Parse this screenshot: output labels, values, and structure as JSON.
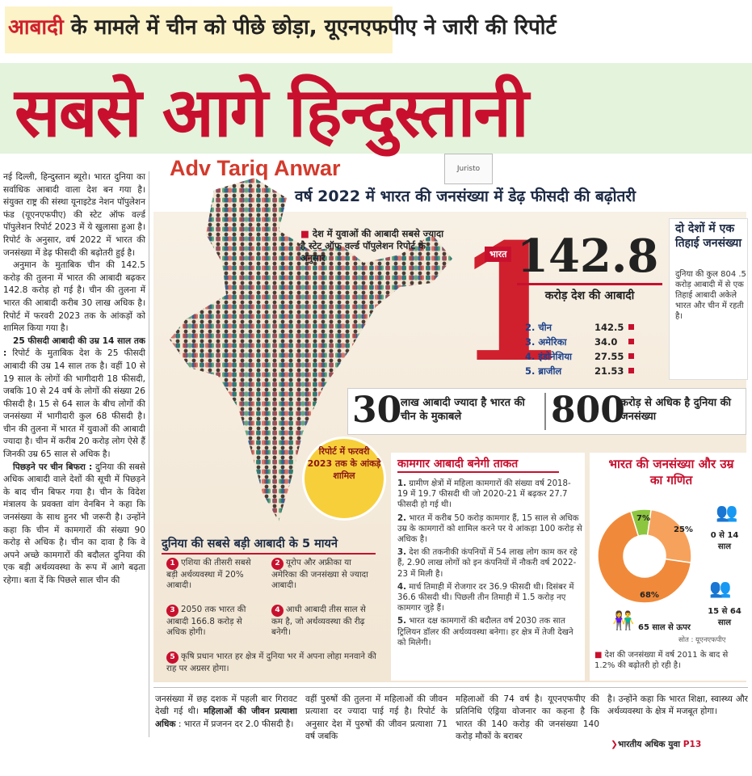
{
  "kicker": {
    "highlight": "आबादी",
    "rest": " के मामले में चीन को पीछे छोड़ा, यूएनएफपीए ने जारी की रिपोर्ट"
  },
  "headline": "सबसे आगे हिन्दुस्तानी",
  "watermark": {
    "text": "Adv Tariq Anwar",
    "logo": "Juristo"
  },
  "left_column": {
    "p1": "नई दिल्ली, हिन्दुस्तान ब्यूरो। भारत दुनिया का सर्वाधिक आबादी वाला देश बन गया है। संयुक्त राष्ट्र की संस्था यूनाइटेड नेशन पॉपुलेशन फंड (यूएनएफपीए) की स्टेट ऑफ वर्ल्ड पॉपुलेशन रिपोर्ट 2023 में ये खुलासा हुआ है। रिपोर्ट के अनुसार, वर्ष 2022 में भारत की जनसंख्या में डेढ़ फीसदी की बढ़ोतरी हुई है।",
    "p2": "अनुमान के मुताबिक चीन की 142.5 करोड़ की तुलना में भारत की आबादी बढ़कर 142.8 करोड़ हो गई है। चीन की तुलना में भारत की आबादी करीब 30 लाख अधिक है। रिपोर्ट में फरवरी 2023 तक के आंकड़ों को शामिल किया गया है।",
    "p3_head": "25 फीसदी आबादी की उम्र 14 साल तक :",
    "p3": " रिपोर्ट के मुताबिक देश के 25 फीसदी आबादी की उम्र 14 साल तक है। वहीं 10 से 19 साल के लोगों की भागीदारी 18 फीसदी, जबकि 10 से 24 वर्ष के लोगों की संख्या 26 फीसदी है। 15 से 64 साल के बीच लोगों की जनसंख्या में भागीदारी कुल 68 फीसदी है। चीन की तुलना में भारत में युवाओं की आबादी ज्यादा है। चीन में करीब 20 करोड़ लोग ऐसे हैं जिनकी उम्र 65 साल से अधिक है।",
    "p4_head": "पिछड़ने पर चीन बिफरा :",
    "p4": " दुनिया की सबसे अधिक आबादी वाले देशों की सूची में पिछड़ने के बाद चीन बिफर गया है। चीन के विदेश मंत्रालय के प्रवक्ता वांग वेनबिन ने कहा कि जनसंख्या के साथ हुनर भी जरूरी है। उन्होंने कहा कि चीन में कामगारों की संख्या 90 करोड़ से अधिक है। चीन का दावा है कि वे अपने अच्छे कामगारों की बदौलत दुनिया की एक बड़ी अर्थव्यवस्था के रूप में आगे बढ़ता रहेगा। बता दें कि पिछले साल चीन की"
  },
  "subhead": "वर्ष 2022 में भारत की जनसंख्या में डेढ़ फीसदी की बढ़ोतरी",
  "map_note": "देश में युवाओं की आबादी सबसे ज्यादा है स्टेट ऑफ वर्ल्ड पॉपुलेशन रिपोर्ट के अनुसार",
  "rank_one": {
    "digit": "1",
    "country_tag": "भारत",
    "value": "142.8",
    "label": "करोड़ देश की आबादी",
    "others": [
      {
        "name": "2. चीन",
        "value": "142.5"
      },
      {
        "name": "3. अमेरिका",
        "value": "34.0"
      },
      {
        "name": "4. इंडोनेशिया",
        "value": "27.55"
      },
      {
        "name": "5. ब्राजील",
        "value": "21.53"
      }
    ]
  },
  "thirds": {
    "title": "दो देशों में एक तिहाई जनसंख्या",
    "body": "दुनिया की कुल 804 .5 करोड़ आबादी में से एक तिहाई आबादी अकेले भारत और चीन में रहती है।"
  },
  "stats": {
    "n1": "30",
    "t1": "लाख आबादी ज्यादा है भारत की चीन के मुकाबले",
    "n2": "800",
    "t2": "करोड़ से अधिक है दुनिया की जनसंख्या"
  },
  "badge": "रिपोर्ट में फरवरी 2023 तक के आंकड़े शामिल",
  "five": {
    "title": "दुनिया की सबसे बड़ी आबादी के 5 मायने",
    "points": [
      {
        "n": "1",
        "text": "एशिया की तीसरी सबसे बड़ी अर्थव्यवस्था में 20% आबादी।"
      },
      {
        "n": "2",
        "text": "यूरोप और अफ्रीका या अमेरिका की जनसंख्या से ज्यादा आबादी।"
      },
      {
        "n": "3",
        "text": "2050 तक भारत की आबादी 166.8 करोड़ से अधिक होगी।"
      },
      {
        "n": "4",
        "text": "आधी आबादी तीस साल से कम है, जो अर्थव्यवस्था की रीढ़ बनेगी।"
      },
      {
        "n": "5",
        "text": "कृषि प्रधान भारत हर क्षेत्र में दुनिया भर में अपना लोहा मनवाने की राह पर अग्रसर होगा।"
      }
    ]
  },
  "workers": {
    "title": "कामगार आबादी बनेगी ताकत",
    "items": [
      {
        "n": "1.",
        "text": "ग्रामीण क्षेत्रों में महिला कामगारों की संख्या वर्ष 2018- 19 में 19.7 फीसदी थी जो 2020-21 में बढ़कर 27.7 फीसदी हो गई थी।"
      },
      {
        "n": "2.",
        "text": "भारत में करीब 50 करोड़ कामगार हैं, 15 साल से अधिक उम्र के कामगारों को शामिल करने पर ये आंकड़ा 100 करोड़ से अधिक है।"
      },
      {
        "n": "3.",
        "text": "देश की तकनीकी कंपनियों में 54 लाख लोग काम कर रहे हैं, 2.90 लाख लोगों को इन कंपनियों में नौकरी वर्ष 2022-23 में मिली है।"
      },
      {
        "n": "4.",
        "text": "मार्च तिमाही में रोजगार दर 36.9 फीसदी थी। दिसंबर में 36.6 फीसदी थी। पिछली तीन तिमाही में 1.5 करोड़ नए कामगार जुड़े हैं।"
      },
      {
        "n": "5.",
        "text": "भारत दक्ष कामगारों की बदौलत वर्ष 2030 तक सात ट्रिलियन डॉलर की अर्थव्यवस्था बनेगा। हर क्षेत्र में तेजी देखने को मिलेगी।"
      }
    ]
  },
  "age": {
    "title": "भारत की जनसंख्या और उम्र का गणित",
    "segments": [
      {
        "label": "0 से 14 साल",
        "pct_text": "25%",
        "value": 25,
        "color": "#f7a25c"
      },
      {
        "label": "15 से 64 साल",
        "pct_text": "68%",
        "value": 68,
        "color": "#f08a3a"
      },
      {
        "label": "65 साल से ऊपर",
        "pct_text": "7%",
        "value": 7,
        "color": "#8cc63f"
      }
    ],
    "source": "सोत : यूएनएफपीए",
    "note": "देश की जनसंख्या में वर्ष 2011 के बाद से 1.2% की बढ़ोतरी हो रही है।"
  },
  "bottom": {
    "c1": "जनसंख्या में छह दशक में पहली बार गिरावट देखी गई थी।",
    "c1_head": "महिलाओं की जीवन प्रत्याशा अधिक",
    "c1_tail": " : भारत में प्रजनन दर 2.0 फीसदी है।",
    "c2": "वहीं पुरुषों की तुलना में महिलाओं की जीवन प्रत्याशा दर ज्यादा पाई गई है। रिपोर्ट के अनुसार देश में पुरुषों की जीवन प्रत्याशा 71 वर्ष जबकि",
    "c3": "महिलाओं की 74 वर्ष है। यूएनएफपीए की प्रतिनिधि एंड्रिया वोजनार का कहना है कि भारत की 140 करोड़ की जनसंख्या 140 करोड़ मौकों के बराबर",
    "c4": "है। उन्होंने कहा कि भारत शिक्षा, स्वास्थ्य और अर्थव्यवस्था के क्षेत्र में मजबूत होगा।",
    "continued": "भारतीय अधिक युवा",
    "page_ref": "P13"
  }
}
